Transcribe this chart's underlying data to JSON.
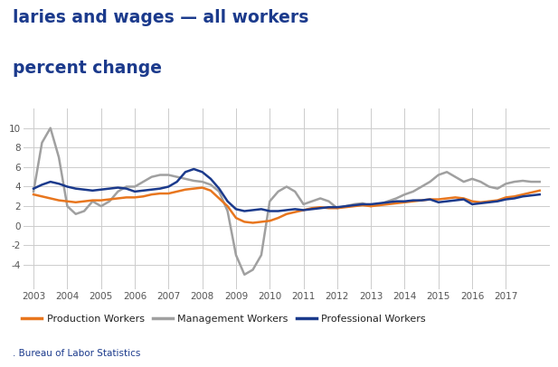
{
  "title_line1": "laries and wages — all workers",
  "title_line2": "percent change",
  "source": ". Bureau of Labor Statistics",
  "legend": [
    "Production Workers",
    "Management Workers",
    "Professional Workers"
  ],
  "colors": {
    "production": "#E8761E",
    "management": "#A0A0A0",
    "professional": "#1B3A8C"
  },
  "x_years": [
    2003.0,
    2003.25,
    2003.5,
    2003.75,
    2004.0,
    2004.25,
    2004.5,
    2004.75,
    2005.0,
    2005.25,
    2005.5,
    2005.75,
    2006.0,
    2006.25,
    2006.5,
    2006.75,
    2007.0,
    2007.25,
    2007.5,
    2007.75,
    2008.0,
    2008.25,
    2008.5,
    2008.75,
    2009.0,
    2009.25,
    2009.5,
    2009.75,
    2010.0,
    2010.25,
    2010.5,
    2010.75,
    2011.0,
    2011.25,
    2011.5,
    2011.75,
    2012.0,
    2012.25,
    2012.5,
    2012.75,
    2013.0,
    2013.25,
    2013.5,
    2013.75,
    2014.0,
    2014.25,
    2014.5,
    2014.75,
    2015.0,
    2015.25,
    2015.5,
    2015.75,
    2016.0,
    2016.25,
    2016.5,
    2016.75,
    2017.0,
    2017.25,
    2017.5,
    2017.75,
    2018.0
  ],
  "production": [
    3.2,
    3.0,
    2.8,
    2.6,
    2.5,
    2.4,
    2.5,
    2.6,
    2.6,
    2.7,
    2.8,
    2.9,
    2.9,
    3.0,
    3.2,
    3.3,
    3.3,
    3.5,
    3.7,
    3.8,
    3.9,
    3.6,
    2.8,
    2.0,
    0.8,
    0.4,
    0.3,
    0.4,
    0.5,
    0.8,
    1.2,
    1.4,
    1.6,
    1.8,
    1.9,
    1.8,
    1.8,
    1.9,
    2.0,
    2.1,
    2.0,
    2.1,
    2.2,
    2.3,
    2.4,
    2.5,
    2.6,
    2.7,
    2.7,
    2.8,
    2.9,
    2.8,
    2.5,
    2.4,
    2.5,
    2.6,
    2.9,
    3.0,
    3.2,
    3.4,
    3.6
  ],
  "management": [
    3.5,
    8.5,
    10.0,
    7.0,
    2.0,
    1.2,
    1.5,
    2.5,
    2.0,
    2.5,
    3.5,
    4.0,
    4.0,
    4.5,
    5.0,
    5.2,
    5.2,
    5.0,
    4.8,
    4.6,
    4.5,
    4.2,
    3.5,
    1.5,
    -3.0,
    -5.0,
    -4.5,
    -3.0,
    2.5,
    3.5,
    4.0,
    3.5,
    2.2,
    2.5,
    2.8,
    2.5,
    1.8,
    2.0,
    2.2,
    2.3,
    2.0,
    2.2,
    2.5,
    2.8,
    3.2,
    3.5,
    4.0,
    4.5,
    5.2,
    5.5,
    5.0,
    4.5,
    4.8,
    4.5,
    4.0,
    3.8,
    4.3,
    4.5,
    4.6,
    4.5,
    4.5
  ],
  "professional": [
    3.8,
    4.2,
    4.5,
    4.3,
    4.0,
    3.8,
    3.7,
    3.6,
    3.7,
    3.8,
    3.9,
    3.8,
    3.5,
    3.6,
    3.7,
    3.8,
    4.0,
    4.5,
    5.5,
    5.8,
    5.5,
    4.8,
    3.8,
    2.5,
    1.7,
    1.5,
    1.6,
    1.7,
    1.5,
    1.5,
    1.6,
    1.7,
    1.6,
    1.7,
    1.8,
    1.9,
    1.9,
    2.0,
    2.1,
    2.2,
    2.2,
    2.3,
    2.4,
    2.5,
    2.5,
    2.6,
    2.6,
    2.7,
    2.4,
    2.5,
    2.6,
    2.7,
    2.2,
    2.3,
    2.4,
    2.5,
    2.7,
    2.8,
    3.0,
    3.1,
    3.2
  ],
  "xtick_years": [
    2003,
    2004,
    2005,
    2006,
    2007,
    2008,
    2009,
    2010,
    2011,
    2012,
    2013,
    2014,
    2015,
    2016,
    2017
  ],
  "xlim": [
    2002.7,
    2018.3
  ],
  "ylim": [
    -6.5,
    12.0
  ],
  "yticks": [
    -4,
    -2,
    0,
    2,
    4,
    6,
    8,
    10
  ],
  "background_color": "#FFFFFF",
  "grid_color": "#CCCCCC",
  "title_color": "#1B3A8C",
  "source_color": "#1B3A8C",
  "tick_color": "#555555"
}
